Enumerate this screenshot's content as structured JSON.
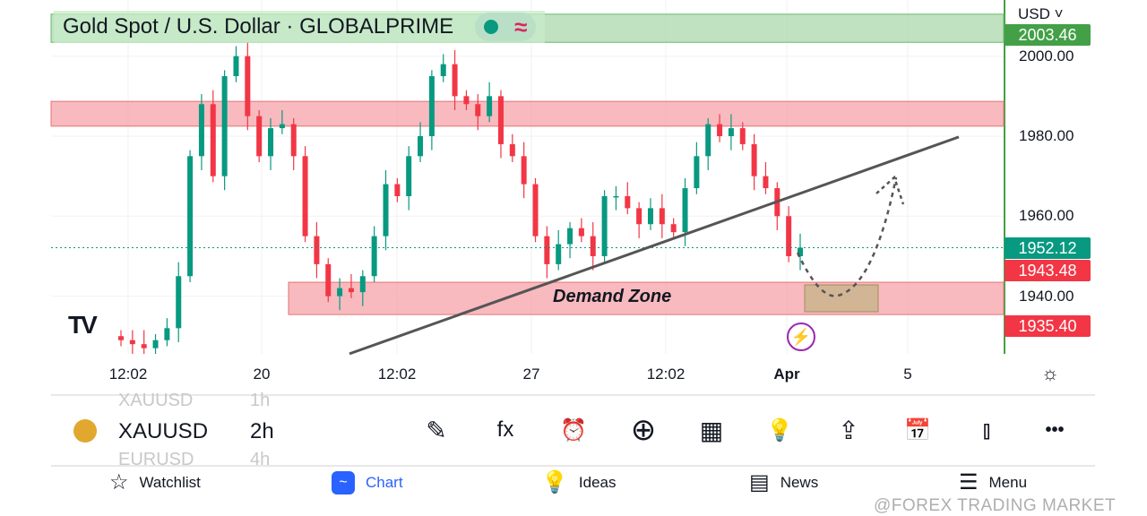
{
  "header": {
    "title": "Gold Spot / U.S. Dollar · GLOBALPRIME",
    "currency": "USD ˅",
    "market_status_icon": "green-dot",
    "wave_icon": "≈"
  },
  "price_axis": {
    "ticks": [
      "2000.00",
      "1980.00",
      "1960.00",
      "1940.00"
    ],
    "tags": [
      {
        "label": "2003.46",
        "color": "#43a047"
      },
      {
        "label": "1952.12",
        "color": "#089981"
      },
      {
        "label": "1943.48",
        "color": "#f23645"
      },
      {
        "label": "1935.40",
        "color": "#f23645"
      }
    ]
  },
  "time_axis": {
    "ticks": [
      "12:02",
      "20",
      "12:02",
      "27",
      "12:02",
      "Apr",
      "5"
    ]
  },
  "annotations": {
    "demand_zone": "Demand Zone"
  },
  "chart_data": {
    "type": "candlestick",
    "symbol": "XAUUSD",
    "interval": "2h",
    "ylim": [
      1925.6,
      2014
    ],
    "closes": [
      1929,
      1928,
      1927,
      1929,
      1932,
      1945,
      1975,
      1988,
      1970,
      1995,
      2000,
      1985,
      1975,
      1982,
      1983,
      1975,
      1955,
      1948,
      1940,
      1942,
      1941,
      1945,
      1955,
      1968,
      1965,
      1975,
      1980,
      1995,
      1998,
      1990,
      1988,
      1985,
      1990,
      1978,
      1975,
      1968,
      1955,
      1948,
      1953,
      1957,
      1955,
      1950,
      1965,
      1965,
      1962,
      1958,
      1962,
      1958,
      1956,
      1967,
      1975,
      1983,
      1980,
      1982,
      1978,
      1970,
      1967,
      1960,
      1950,
      1952.12
    ],
    "last_price": 1952.12,
    "zones": [
      {
        "name": "resistance",
        "from": 1982.5,
        "to": 1988.7,
        "color": "#f5a3a8"
      },
      {
        "name": "Demand Zone",
        "from": 1935.4,
        "to": 1943.48,
        "color": "#f5a3a8"
      },
      {
        "name": "top",
        "from": 2003.46,
        "to": 2010.5,
        "color": "#a5d6a7"
      }
    ],
    "trendline": [
      1925.6,
      1979.8
    ],
    "up_color": "#089981",
    "down_color": "#f23645"
  },
  "symbol_bar": {
    "prev": "XAUUSD",
    "prev_tf": "1h",
    "symbol": "XAUUSD",
    "timeframe": "2h",
    "next": "EURUSD",
    "next_tf": "4h",
    "tools": [
      {
        "icon": "draw-icon",
        "glyph": "✎"
      },
      {
        "icon": "indicators-icon",
        "glyph": "fx"
      },
      {
        "icon": "alert-icon",
        "glyph": "⏰"
      },
      {
        "icon": "add-icon",
        "glyph": "⊕"
      },
      {
        "icon": "layout-icon",
        "glyph": "▦"
      },
      {
        "icon": "ideas-icon",
        "glyph": "💡"
      },
      {
        "icon": "share-icon",
        "glyph": "⇪"
      },
      {
        "icon": "date-range-icon",
        "glyph": "📅"
      },
      {
        "icon": "chart-type-icon",
        "glyph": "⫾"
      },
      {
        "icon": "more-icon",
        "glyph": "•••"
      }
    ]
  },
  "bottom_nav": [
    {
      "label": "Watchlist",
      "icon": "☆"
    },
    {
      "label": "Chart",
      "icon": "~"
    },
    {
      "label": "Ideas",
      "icon": "💡"
    },
    {
      "label": "News",
      "icon": "▤"
    },
    {
      "label": "Menu",
      "icon": "☰"
    }
  ],
  "watermark": "@FOREX TRADING MARKET"
}
